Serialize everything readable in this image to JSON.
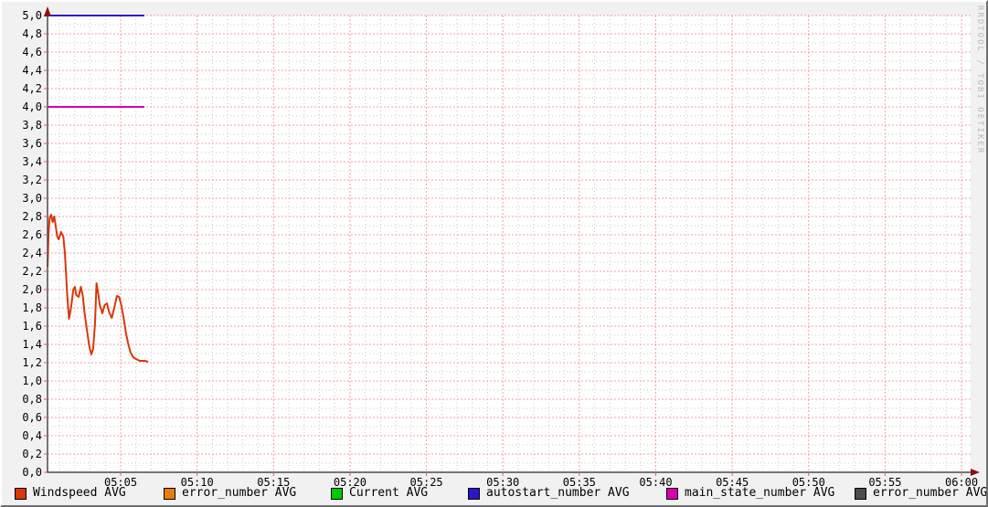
{
  "watermark": "RRDTOOL / TOBI OETIKER",
  "colors": {
    "background": "#f1f1f1",
    "plot_background": "#ffffff",
    "axis": "#4a4a4a",
    "arrow": "#8f1010",
    "grid_major": "#f0a0a0",
    "grid_minor": "#c9c9c9",
    "tick": "#d96060",
    "text": "#000000",
    "watermark_text": "#b9b9b9"
  },
  "chart_data": {
    "type": "line",
    "title": "",
    "xlabel": "",
    "ylabel": "",
    "x_axis": {
      "unit": "time",
      "start_min": 0,
      "end_min": 60,
      "minor_step_min": 1,
      "major_step_min": 5,
      "ticks": [
        {
          "min": 5,
          "label": "05:05"
        },
        {
          "min": 10,
          "label": "05:10"
        },
        {
          "min": 15,
          "label": "05:15"
        },
        {
          "min": 20,
          "label": "05:20"
        },
        {
          "min": 25,
          "label": "05:25"
        },
        {
          "min": 30,
          "label": "05:30"
        },
        {
          "min": 35,
          "label": "05:35"
        },
        {
          "min": 40,
          "label": "05:40"
        },
        {
          "min": 45,
          "label": "05:45"
        },
        {
          "min": 50,
          "label": "05:50"
        },
        {
          "min": 55,
          "label": "05:55"
        },
        {
          "min": 60,
          "label": "06:00"
        }
      ]
    },
    "y_axis": {
      "min": 0,
      "max": 5,
      "major_step": 0.2,
      "minor_step": 0.1,
      "ticks": [
        {
          "value": 0.0,
          "label": "0,0"
        },
        {
          "value": 0.2,
          "label": "0,2"
        },
        {
          "value": 0.4,
          "label": "0,4"
        },
        {
          "value": 0.6,
          "label": "0,6"
        },
        {
          "value": 0.8,
          "label": "0,8"
        },
        {
          "value": 1.0,
          "label": "1,0"
        },
        {
          "value": 1.2,
          "label": "1,2"
        },
        {
          "value": 1.4,
          "label": "1,4"
        },
        {
          "value": 1.6,
          "label": "1,6"
        },
        {
          "value": 1.8,
          "label": "1,8"
        },
        {
          "value": 2.0,
          "label": "2,0"
        },
        {
          "value": 2.2,
          "label": "2,2"
        },
        {
          "value": 2.4,
          "label": "2,4"
        },
        {
          "value": 2.6,
          "label": "2,6"
        },
        {
          "value": 2.8,
          "label": "2,8"
        },
        {
          "value": 3.0,
          "label": "3,0"
        },
        {
          "value": 3.2,
          "label": "3,2"
        },
        {
          "value": 3.4,
          "label": "3,4"
        },
        {
          "value": 3.6,
          "label": "3,6"
        },
        {
          "value": 3.8,
          "label": "3,8"
        },
        {
          "value": 4.0,
          "label": "4,0"
        },
        {
          "value": 4.2,
          "label": "4,2"
        },
        {
          "value": 4.4,
          "label": "4,4"
        },
        {
          "value": 4.6,
          "label": "4,6"
        },
        {
          "value": 4.8,
          "label": "4,8"
        },
        {
          "value": 5.0,
          "label": "5,0"
        }
      ]
    },
    "series": [
      {
        "name": "Windspeed AVG",
        "color": "#db3708",
        "points": [
          [
            0.22,
            2.25
          ],
          [
            0.28,
            2.62
          ],
          [
            0.35,
            2.78
          ],
          [
            0.45,
            2.82
          ],
          [
            0.55,
            2.74
          ],
          [
            0.65,
            2.8
          ],
          [
            0.75,
            2.7
          ],
          [
            0.85,
            2.58
          ],
          [
            0.95,
            2.55
          ],
          [
            1.1,
            2.63
          ],
          [
            1.25,
            2.58
          ],
          [
            1.35,
            2.4
          ],
          [
            1.5,
            1.95
          ],
          [
            1.62,
            1.68
          ],
          [
            1.75,
            1.8
          ],
          [
            1.9,
            2.0
          ],
          [
            2.0,
            2.03
          ],
          [
            2.1,
            1.94
          ],
          [
            2.25,
            1.92
          ],
          [
            2.4,
            2.03
          ],
          [
            2.52,
            1.93
          ],
          [
            2.65,
            1.73
          ],
          [
            2.8,
            1.55
          ],
          [
            2.95,
            1.38
          ],
          [
            3.08,
            1.29
          ],
          [
            3.2,
            1.35
          ],
          [
            3.32,
            1.62
          ],
          [
            3.42,
            2.07
          ],
          [
            3.52,
            1.97
          ],
          [
            3.62,
            1.84
          ],
          [
            3.8,
            1.74
          ],
          [
            3.95,
            1.83
          ],
          [
            4.1,
            1.85
          ],
          [
            4.25,
            1.75
          ],
          [
            4.42,
            1.69
          ],
          [
            4.58,
            1.8
          ],
          [
            4.75,
            1.93
          ],
          [
            4.9,
            1.92
          ],
          [
            5.05,
            1.82
          ],
          [
            5.2,
            1.68
          ],
          [
            5.35,
            1.52
          ],
          [
            5.5,
            1.4
          ],
          [
            5.65,
            1.31
          ],
          [
            5.82,
            1.26
          ],
          [
            6.0,
            1.24
          ],
          [
            6.25,
            1.22
          ],
          [
            6.55,
            1.22
          ],
          [
            6.8,
            1.21
          ]
        ]
      },
      {
        "name": "error_number AVG",
        "color": "#e87e0a",
        "points": []
      },
      {
        "name": "Current AVG",
        "color": "#00cc00",
        "points": []
      },
      {
        "name": "autostart_number AVG",
        "color": "#2d16c8",
        "points": [
          [
            0.22,
            5.0
          ],
          [
            6.55,
            5.0
          ]
        ]
      },
      {
        "name": "main_state_number AVG",
        "color": "#d900ad",
        "points": [
          [
            0.22,
            4.0
          ],
          [
            6.55,
            4.0
          ]
        ]
      },
      {
        "name": "error_number AVG",
        "color": "#4d4d4d",
        "points": []
      }
    ],
    "legend_position": "bottom",
    "grid": true
  }
}
